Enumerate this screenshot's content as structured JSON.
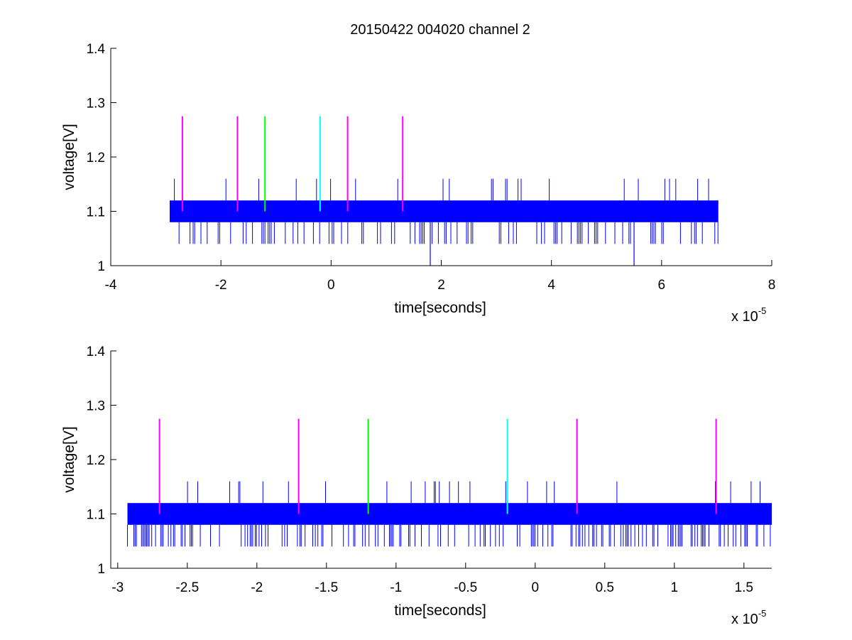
{
  "figure_title": "20150422 004020 channel 2",
  "chart_data": [
    {
      "type": "line",
      "title": "20150422 004020 channel 2",
      "xlabel": "time[seconds]",
      "ylabel": "voltage[V]",
      "x_exponent_label": "x 10",
      "x_exponent_power": "-5",
      "xlim": [
        -4,
        8
      ],
      "ylim": [
        1,
        1.4
      ],
      "xticks": [
        -4,
        -2,
        0,
        2,
        4,
        6,
        8
      ],
      "xtick_labels": [
        "-4",
        "-2",
        "0",
        "2",
        "4",
        "6",
        "8"
      ],
      "yticks": [
        1,
        1.1,
        1.2,
        1.3,
        1.4
      ],
      "ytick_labels": [
        "1",
        "1.1",
        "1.2",
        "1.3",
        "1.4"
      ],
      "grid": false,
      "signal": {
        "color": "#0000ff",
        "x_range": [
          -2.93,
          7.03
        ],
        "band_low": 1.08,
        "band_high": 1.12,
        "spike_high": 1.16,
        "spike_low": 1.04,
        "outlier_lows": [
          [
            1.8,
            1.0
          ],
          [
            5.5,
            1.0
          ]
        ]
      },
      "markers": [
        {
          "x": -2.7,
          "y_bottom": 1.1,
          "y_top": 1.275,
          "color": "#ff00ff"
        },
        {
          "x": -1.7,
          "y_bottom": 1.1,
          "y_top": 1.275,
          "color": "#ff00ff"
        },
        {
          "x": -1.2,
          "y_bottom": 1.1,
          "y_top": 1.275,
          "color": "#00ff00"
        },
        {
          "x": -0.2,
          "y_bottom": 1.1,
          "y_top": 1.275,
          "color": "#00ffff"
        },
        {
          "x": 0.3,
          "y_bottom": 1.1,
          "y_top": 1.275,
          "color": "#ff00ff"
        },
        {
          "x": 1.3,
          "y_bottom": 1.1,
          "y_top": 1.275,
          "color": "#ff00ff"
        }
      ]
    },
    {
      "type": "line",
      "title": "",
      "xlabel": "time[seconds]",
      "ylabel": "voltage[V]",
      "x_exponent_label": "x 10",
      "x_exponent_power": "-5",
      "xlim": [
        -3.05,
        1.7
      ],
      "ylim": [
        1,
        1.4
      ],
      "xticks": [
        -3,
        -2.5,
        -2,
        -1.5,
        -1,
        -0.5,
        0,
        0.5,
        1,
        1.5
      ],
      "xtick_labels": [
        "-3",
        "-2.5",
        "-2",
        "-1.5",
        "-1",
        "-0.5",
        "0",
        "0.5",
        "1",
        "1.5"
      ],
      "yticks": [
        1,
        1.1,
        1.2,
        1.3,
        1.4
      ],
      "ytick_labels": [
        "1",
        "1.1",
        "1.2",
        "1.3",
        "1.4"
      ],
      "grid": false,
      "signal": {
        "color": "#0000ff",
        "x_range": [
          -2.93,
          1.7
        ],
        "band_low": 1.08,
        "band_high": 1.12,
        "spike_high": 1.16,
        "spike_low": 1.04,
        "outlier_lows": []
      },
      "markers": [
        {
          "x": -2.7,
          "y_bottom": 1.1,
          "y_top": 1.275,
          "color": "#ff00ff"
        },
        {
          "x": -1.7,
          "y_bottom": 1.1,
          "y_top": 1.275,
          "color": "#ff00ff"
        },
        {
          "x": -1.2,
          "y_bottom": 1.1,
          "y_top": 1.275,
          "color": "#00ff00"
        },
        {
          "x": -0.2,
          "y_bottom": 1.1,
          "y_top": 1.275,
          "color": "#00ffff"
        },
        {
          "x": 0.3,
          "y_bottom": 1.1,
          "y_top": 1.275,
          "color": "#ff00ff"
        },
        {
          "x": 1.3,
          "y_bottom": 1.1,
          "y_top": 1.275,
          "color": "#ff00ff"
        }
      ]
    }
  ]
}
